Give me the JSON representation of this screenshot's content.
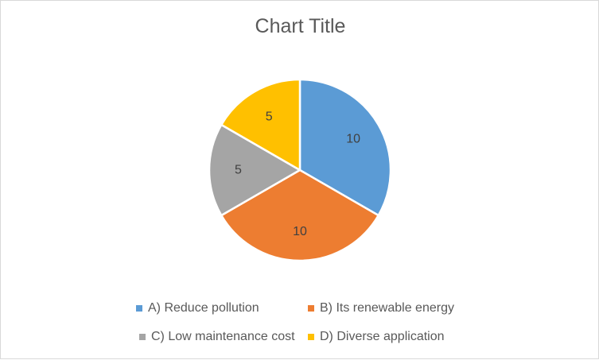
{
  "chart_data": {
    "type": "pie",
    "title": "Chart Title",
    "categories": [
      "A) Reduce pollution",
      "B) Its renewable energy",
      "C) Low maintenance cost",
      "D) Diverse application"
    ],
    "values": [
      10,
      10,
      5,
      5
    ],
    "data_labels": [
      "10",
      "10",
      "5",
      "5"
    ],
    "colors": [
      "#5B9BD5",
      "#ED7D31",
      "#A5A5A5",
      "#FFC000"
    ],
    "legend_position": "bottom"
  }
}
